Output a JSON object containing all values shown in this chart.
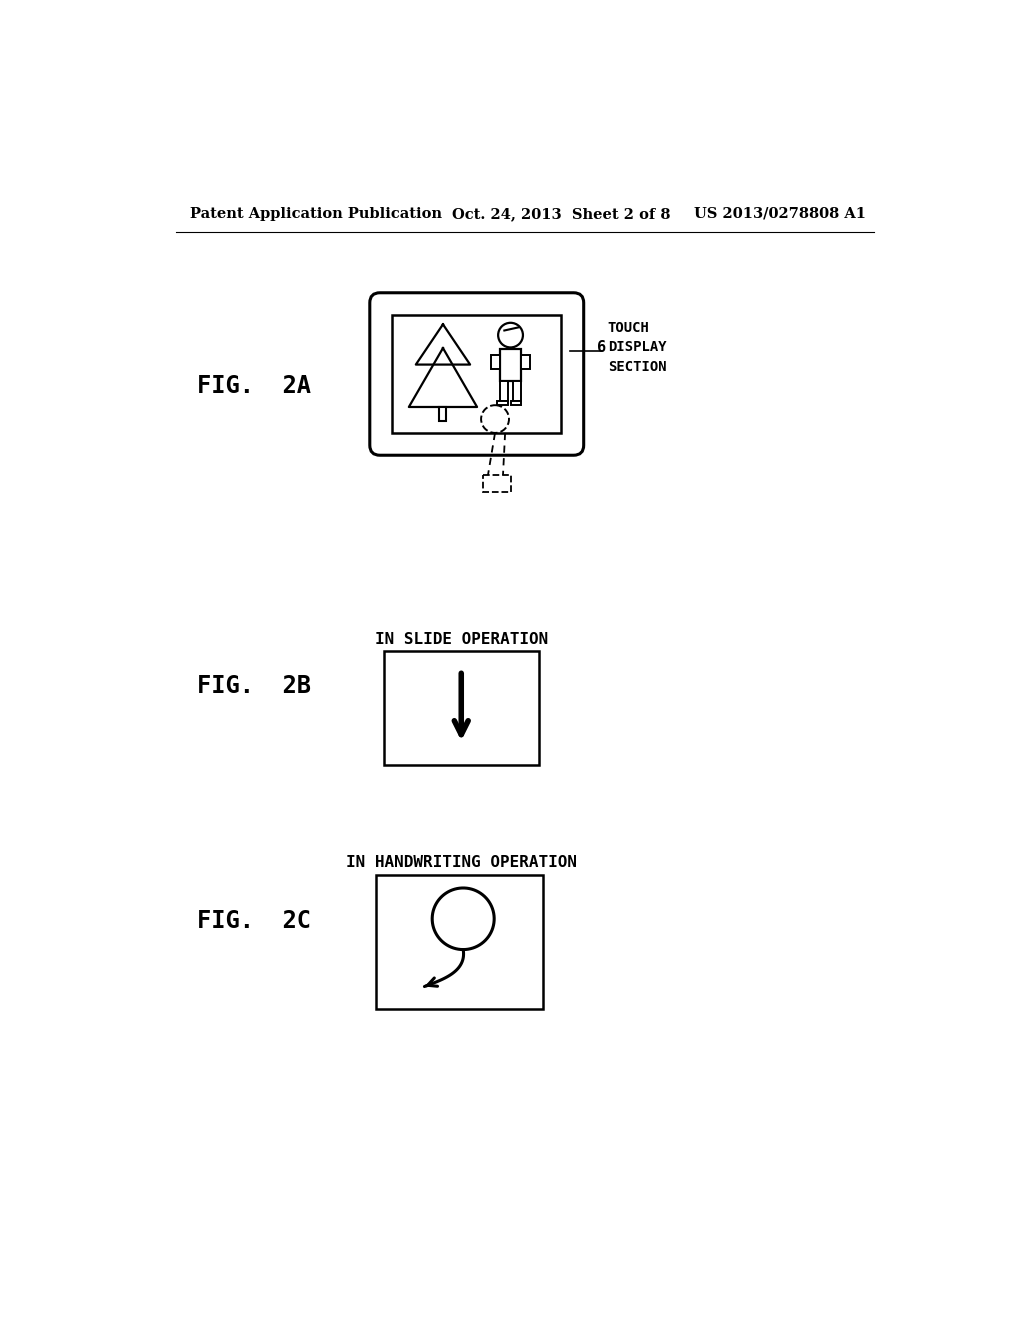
{
  "bg_color": "#ffffff",
  "header_left": "Patent Application Publication",
  "header_mid": "Oct. 24, 2013  Sheet 2 of 8",
  "header_right": "US 2013/0278808 A1",
  "fig2a_label": "FIG.  2A",
  "fig2b_label": "FIG.  2B",
  "fig2c_label": "FIG.  2C",
  "label_6": "6",
  "touch_display": "TOUCH\nDISPLAY\nSECTION",
  "slide_text": "IN SLIDE OPERATION",
  "handwriting_text": "IN HANDWRITING OPERATION"
}
